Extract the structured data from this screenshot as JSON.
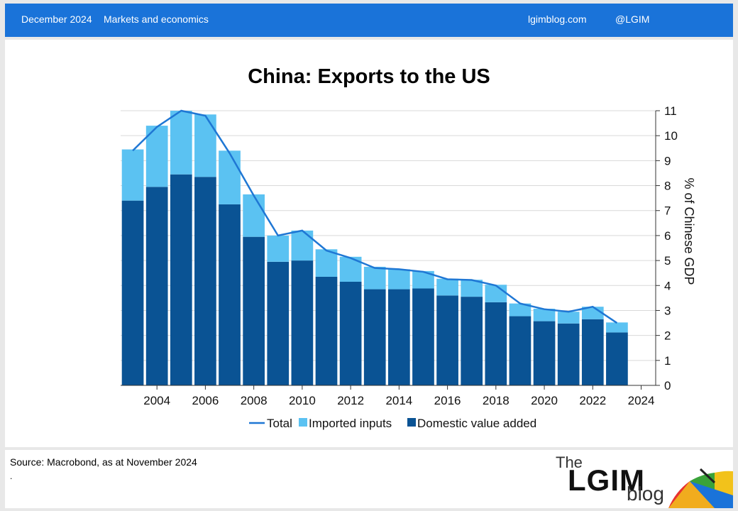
{
  "header": {
    "date": "December 2024",
    "category": "Markets and economics",
    "site": "lgimblog.com",
    "handle": "@LGIM"
  },
  "footer": {
    "source": "Source: Macrobond, as at November 2024",
    "dot": ".",
    "logo_the": "The",
    "logo_lgim": "LGIM",
    "logo_blog": "blog"
  },
  "colors": {
    "header_bg": "#1a73d9",
    "domestic": "#0a5394",
    "imported": "#5bc2f2",
    "total": "#1f77d4"
  },
  "chart_data": {
    "type": "bar",
    "title": "China: Exports to the US",
    "ylabel": "% of Chinese GDP",
    "ylim": [
      0,
      11
    ],
    "yticks": [
      0,
      1,
      2,
      3,
      4,
      5,
      6,
      7,
      8,
      9,
      10,
      11
    ],
    "x": [
      2003,
      2004,
      2005,
      2006,
      2007,
      2008,
      2009,
      2010,
      2011,
      2012,
      2013,
      2014,
      2015,
      2016,
      2017,
      2018,
      2019,
      2020,
      2021,
      2022,
      2023
    ],
    "xticks": [
      2004,
      2006,
      2008,
      2010,
      2012,
      2014,
      2016,
      2018,
      2020,
      2022,
      2024
    ],
    "stacked": true,
    "grid": true,
    "legend_position": "bottom",
    "series": [
      {
        "name": "Domestic value added",
        "type": "bar",
        "values": [
          7.4,
          7.95,
          8.45,
          8.35,
          7.25,
          5.95,
          4.95,
          5.0,
          4.35,
          4.15,
          3.85,
          3.85,
          3.88,
          3.6,
          3.55,
          3.33,
          2.77,
          2.57,
          2.48,
          2.65,
          2.12
        ]
      },
      {
        "name": "Imported inputs",
        "type": "bar",
        "values": [
          2.05,
          2.45,
          2.55,
          2.5,
          2.15,
          1.7,
          1.05,
          1.2,
          1.1,
          1.0,
          0.9,
          0.8,
          0.7,
          0.67,
          0.68,
          0.7,
          0.51,
          0.5,
          0.47,
          0.5,
          0.4
        ]
      },
      {
        "name": "Total",
        "type": "line",
        "values": [
          9.4,
          10.35,
          11.0,
          10.8,
          9.3,
          7.6,
          6.0,
          6.2,
          5.4,
          5.1,
          4.7,
          4.65,
          4.55,
          4.25,
          4.22,
          4.0,
          3.28,
          3.05,
          2.95,
          3.15,
          2.5
        ]
      }
    ]
  }
}
